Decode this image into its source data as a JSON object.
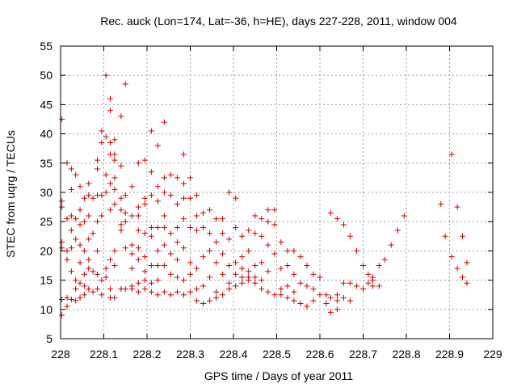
{
  "chart_data": {
    "type": "scatter",
    "title": "Rec. auck (Lon=174, Lat=-36, h=HE), days 227-228, 2011, window 004",
    "xlabel": "GPS time / Days of year 2011",
    "ylabel": "STEC from uqrg / TECUs",
    "xlim": [
      228,
      229
    ],
    "ylim": [
      5,
      55
    ],
    "xticks": [
      "228",
      "228.1",
      "228.2",
      "228.3",
      "228.4",
      "228.5",
      "228.6",
      "228.7",
      "228.8",
      "228.9",
      "229"
    ],
    "yticks": [
      "5",
      "10",
      "15",
      "20",
      "25",
      "30",
      "35",
      "40",
      "45",
      "50",
      "55"
    ],
    "grid": true,
    "marker": "plus",
    "color": "#cc0000",
    "points": [
      [
        228.003,
        42.5
      ],
      [
        228.003,
        28.5
      ],
      [
        228.003,
        27.5
      ],
      [
        228.003,
        21.5
      ],
      [
        228.003,
        20.5
      ],
      [
        228.003,
        11.7
      ],
      [
        228.003,
        9.0
      ],
      [
        228.015,
        35.0
      ],
      [
        228.015,
        25.5
      ],
      [
        228.015,
        20.0
      ],
      [
        228.015,
        18.5
      ],
      [
        228.015,
        12.0
      ],
      [
        228.015,
        10.5
      ],
      [
        228.025,
        34.0
      ],
      [
        228.025,
        30.5
      ],
      [
        228.025,
        26.0
      ],
      [
        228.025,
        23.5
      ],
      [
        228.025,
        20.5
      ],
      [
        228.025,
        16.5
      ],
      [
        228.025,
        11.7
      ],
      [
        228.035,
        33.0
      ],
      [
        228.035,
        25.5
      ],
      [
        228.035,
        22.0
      ],
      [
        228.035,
        15.0
      ],
      [
        228.035,
        13.5
      ],
      [
        228.035,
        11.5
      ],
      [
        228.045,
        31.0
      ],
      [
        228.045,
        27.0
      ],
      [
        228.045,
        24.5
      ],
      [
        228.045,
        21.0
      ],
      [
        228.045,
        18.0
      ],
      [
        228.045,
        14.5
      ],
      [
        228.045,
        12.0
      ],
      [
        228.055,
        29.0
      ],
      [
        228.055,
        25.0
      ],
      [
        228.055,
        20.0
      ],
      [
        228.055,
        16.0
      ],
      [
        228.055,
        14.0
      ],
      [
        228.055,
        12.5
      ],
      [
        228.065,
        31.5
      ],
      [
        228.065,
        29.5
      ],
      [
        228.065,
        26.0
      ],
      [
        228.065,
        22.0
      ],
      [
        228.065,
        18.5
      ],
      [
        228.065,
        17.0
      ],
      [
        228.065,
        13.5
      ],
      [
        228.075,
        29.0
      ],
      [
        228.075,
        23.0
      ],
      [
        228.075,
        16.5
      ],
      [
        228.075,
        13.0
      ],
      [
        228.085,
        35.5
      ],
      [
        228.085,
        34.0
      ],
      [
        228.085,
        29.5
      ],
      [
        228.085,
        25.0
      ],
      [
        228.085,
        20.0
      ],
      [
        228.085,
        16.0
      ],
      [
        228.085,
        13.5
      ],
      [
        228.095,
        40.5
      ],
      [
        228.095,
        38.5
      ],
      [
        228.095,
        29.5
      ],
      [
        228.095,
        26.0
      ],
      [
        228.095,
        15.0
      ],
      [
        228.095,
        12.5
      ],
      [
        228.105,
        50.0
      ],
      [
        228.105,
        39.5
      ],
      [
        228.105,
        33.0
      ],
      [
        228.105,
        30.0
      ],
      [
        228.105,
        17.0
      ],
      [
        228.105,
        15.5
      ],
      [
        228.115,
        46.0
      ],
      [
        228.115,
        44.0
      ],
      [
        228.115,
        38.5
      ],
      [
        228.115,
        36.5
      ],
      [
        228.115,
        31.5
      ],
      [
        228.115,
        27.0
      ],
      [
        228.115,
        18.5
      ],
      [
        228.115,
        13.5
      ],
      [
        228.115,
        12.0
      ],
      [
        228.125,
        39.0
      ],
      [
        228.125,
        36.5
      ],
      [
        228.125,
        35.5
      ],
      [
        228.125,
        32.5
      ],
      [
        228.125,
        30.5
      ],
      [
        228.125,
        28.0
      ],
      [
        228.125,
        20.0
      ],
      [
        228.125,
        17.5
      ],
      [
        228.125,
        12.0
      ],
      [
        228.14,
        43.0
      ],
      [
        228.14,
        34.5
      ],
      [
        228.14,
        29.0
      ],
      [
        228.14,
        27.0
      ],
      [
        228.14,
        24.5
      ],
      [
        228.14,
        23.5
      ],
      [
        228.14,
        13.5
      ],
      [
        228.15,
        48.5
      ],
      [
        228.15,
        29.5
      ],
      [
        228.15,
        26.5
      ],
      [
        228.15,
        25.0
      ],
      [
        228.15,
        20.5
      ],
      [
        228.15,
        13.5
      ],
      [
        228.165,
        31.0
      ],
      [
        228.165,
        26.0
      ],
      [
        228.165,
        21.0
      ],
      [
        228.165,
        19.5
      ],
      [
        228.165,
        17.0
      ],
      [
        228.165,
        14.0
      ],
      [
        228.165,
        13.5
      ],
      [
        228.18,
        35.0
      ],
      [
        228.18,
        27.5
      ],
      [
        228.18,
        26.0
      ],
      [
        228.18,
        23.5
      ],
      [
        228.18,
        20.5
      ],
      [
        228.18,
        18.5
      ],
      [
        228.18,
        14.5
      ],
      [
        228.18,
        13.0
      ],
      [
        228.195,
        35.5
      ],
      [
        228.195,
        29.0
      ],
      [
        228.195,
        28.0
      ],
      [
        228.195,
        23.0
      ],
      [
        228.195,
        19.0
      ],
      [
        228.195,
        16.5
      ],
      [
        228.195,
        15.0
      ],
      [
        228.195,
        13.5
      ],
      [
        228.21,
        40.5
      ],
      [
        228.21,
        33.5
      ],
      [
        228.21,
        29.5
      ],
      [
        228.21,
        24.0
      ],
      [
        228.21,
        22.5
      ],
      [
        228.21,
        17.5
      ],
      [
        228.21,
        14.5
      ],
      [
        228.21,
        13.0
      ],
      [
        228.225,
        38.0
      ],
      [
        228.225,
        31.0
      ],
      [
        228.225,
        28.5
      ],
      [
        228.225,
        24.0
      ],
      [
        228.225,
        20.0
      ],
      [
        228.225,
        17.5
      ],
      [
        228.225,
        15.0
      ],
      [
        228.225,
        12.5
      ],
      [
        228.24,
        42.0
      ],
      [
        228.24,
        32.5
      ],
      [
        228.24,
        30.0
      ],
      [
        228.24,
        26.0
      ],
      [
        228.24,
        24.0
      ],
      [
        228.24,
        21.0
      ],
      [
        228.24,
        17.5
      ],
      [
        228.24,
        13.0
      ],
      [
        228.255,
        33.0
      ],
      [
        228.255,
        29.5
      ],
      [
        228.255,
        23.0
      ],
      [
        228.255,
        19.5
      ],
      [
        228.255,
        16.0
      ],
      [
        228.255,
        12.5
      ],
      [
        228.27,
        32.5
      ],
      [
        228.27,
        28.0
      ],
      [
        228.27,
        24.0
      ],
      [
        228.27,
        21.5
      ],
      [
        228.27,
        18.5
      ],
      [
        228.27,
        15.5
      ],
      [
        228.27,
        13.0
      ],
      [
        228.285,
        36.5
      ],
      [
        228.285,
        31.5
      ],
      [
        228.285,
        29.0
      ],
      [
        228.285,
        25.5
      ],
      [
        228.285,
        20.5
      ],
      [
        228.285,
        15.0
      ],
      [
        228.285,
        12.5
      ],
      [
        228.3,
        32.5
      ],
      [
        228.3,
        29.0
      ],
      [
        228.3,
        24.0
      ],
      [
        228.3,
        18.0
      ],
      [
        228.3,
        16.0
      ],
      [
        228.3,
        13.0
      ],
      [
        228.315,
        29.5
      ],
      [
        228.315,
        26.0
      ],
      [
        228.315,
        23.5
      ],
      [
        228.315,
        17.0
      ],
      [
        228.315,
        13.5
      ],
      [
        228.315,
        11.5
      ],
      [
        228.33,
        26.5
      ],
      [
        228.33,
        24.0
      ],
      [
        228.33,
        19.0
      ],
      [
        228.33,
        14.0
      ],
      [
        228.33,
        11.0
      ],
      [
        228.345,
        27.0
      ],
      [
        228.345,
        23.0
      ],
      [
        228.345,
        20.0
      ],
      [
        228.345,
        15.5
      ],
      [
        228.345,
        11.5
      ],
      [
        228.36,
        25.5
      ],
      [
        228.36,
        21.5
      ],
      [
        228.36,
        18.0
      ],
      [
        228.36,
        13.0
      ],
      [
        228.36,
        12.0
      ],
      [
        228.375,
        25.5
      ],
      [
        228.375,
        23.0
      ],
      [
        228.375,
        19.5
      ],
      [
        228.375,
        16.0
      ],
      [
        228.375,
        12.5
      ],
      [
        228.39,
        30.0
      ],
      [
        228.39,
        22.0
      ],
      [
        228.39,
        17.5
      ],
      [
        228.39,
        14.5
      ],
      [
        228.39,
        13.5
      ],
      [
        228.405,
        29.0
      ],
      [
        228.405,
        24.0
      ],
      [
        228.405,
        18.0
      ],
      [
        228.405,
        16.0
      ],
      [
        228.405,
        14.0
      ],
      [
        228.42,
        22.5
      ],
      [
        228.42,
        19.0
      ],
      [
        228.42,
        17.0
      ],
      [
        228.42,
        15.5
      ],
      [
        228.42,
        14.5
      ],
      [
        228.435,
        23.5
      ],
      [
        228.435,
        20.0
      ],
      [
        228.435,
        16.5
      ],
      [
        228.435,
        15.5
      ],
      [
        228.435,
        15.0
      ],
      [
        228.45,
        26.0
      ],
      [
        228.45,
        23.0
      ],
      [
        228.45,
        17.5
      ],
      [
        228.45,
        15.5
      ],
      [
        228.45,
        14.5
      ],
      [
        228.465,
        25.5
      ],
      [
        228.465,
        22.5
      ],
      [
        228.465,
        18.0
      ],
      [
        228.465,
        15.0
      ],
      [
        228.465,
        13.5
      ],
      [
        228.48,
        27.0
      ],
      [
        228.48,
        25.0
      ],
      [
        228.48,
        21.0
      ],
      [
        228.48,
        16.5
      ],
      [
        228.48,
        13.0
      ],
      [
        228.495,
        27.0
      ],
      [
        228.495,
        24.5
      ],
      [
        228.495,
        19.5
      ],
      [
        228.495,
        12.5
      ],
      [
        228.51,
        21.5
      ],
      [
        228.51,
        17.0
      ],
      [
        228.51,
        13.5
      ],
      [
        228.51,
        12.5
      ],
      [
        228.525,
        20.0
      ],
      [
        228.525,
        17.5
      ],
      [
        228.525,
        14.0
      ],
      [
        228.525,
        12.0
      ],
      [
        228.54,
        20.0
      ],
      [
        228.54,
        16.0
      ],
      [
        228.54,
        13.0
      ],
      [
        228.54,
        11.5
      ],
      [
        228.555,
        19.0
      ],
      [
        228.555,
        14.5
      ],
      [
        228.555,
        11.0
      ],
      [
        228.57,
        17.5
      ],
      [
        228.57,
        14.0
      ],
      [
        228.57,
        10.5
      ],
      [
        228.585,
        16.0
      ],
      [
        228.585,
        13.5
      ],
      [
        228.585,
        11.5
      ],
      [
        228.6,
        15.5
      ],
      [
        228.6,
        12.5
      ],
      [
        228.615,
        12.5
      ],
      [
        228.615,
        11.0
      ],
      [
        228.625,
        26.5
      ],
      [
        228.625,
        12.0
      ],
      [
        228.625,
        9.5
      ],
      [
        228.64,
        25.5
      ],
      [
        228.64,
        12.5
      ],
      [
        228.64,
        11.5
      ],
      [
        228.64,
        10.0
      ],
      [
        228.655,
        24.5
      ],
      [
        228.655,
        14.5
      ],
      [
        228.655,
        12.0
      ],
      [
        228.67,
        22.5
      ],
      [
        228.67,
        14.5
      ],
      [
        228.67,
        11.5
      ],
      [
        228.685,
        20.0
      ],
      [
        228.685,
        14.0
      ],
      [
        228.7,
        17.5
      ],
      [
        228.7,
        13.5
      ],
      [
        228.712,
        16.0
      ],
      [
        228.712,
        14.5
      ],
      [
        228.722,
        15.5
      ],
      [
        228.722,
        15.0
      ],
      [
        228.722,
        14.0
      ],
      [
        228.737,
        17.5
      ],
      [
        228.737,
        14.0
      ],
      [
        228.75,
        18.5
      ],
      [
        228.765,
        21.0
      ],
      [
        228.78,
        23.5
      ],
      [
        228.795,
        26.0
      ],
      [
        228.88,
        28.0
      ],
      [
        228.89,
        22.5
      ],
      [
        228.905,
        36.5
      ],
      [
        228.905,
        19.0
      ],
      [
        228.918,
        27.5
      ],
      [
        228.918,
        17.0
      ],
      [
        228.93,
        22.5
      ],
      [
        228.93,
        15.5
      ],
      [
        228.94,
        18.0
      ],
      [
        228.94,
        14.5
      ]
    ]
  }
}
